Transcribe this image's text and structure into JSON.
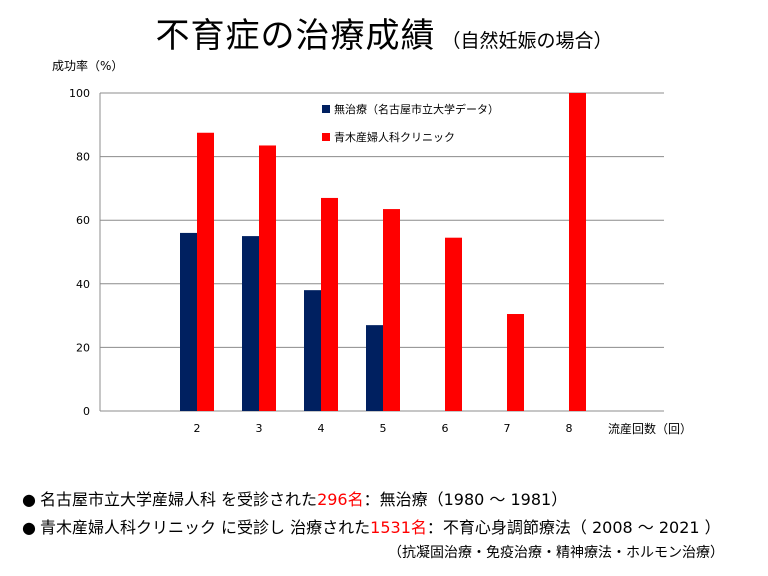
{
  "title": {
    "main": "不育症の治療成績",
    "sub": "（自然妊娠の場合）"
  },
  "chart_data": {
    "type": "bar",
    "ylabel": "成功率（%）",
    "xlabel": "流産回数（回）",
    "categories": [
      "2",
      "3",
      "4",
      "5",
      "6",
      "7",
      "8"
    ],
    "ylim": [
      0,
      100
    ],
    "yticks": [
      0,
      20,
      40,
      60,
      80,
      100
    ],
    "grid": true,
    "legend_position": "top-center",
    "series": [
      {
        "name": "無治療（名古屋市立大学データ）",
        "color": "#002060",
        "values": [
          56,
          55,
          38,
          27,
          null,
          null,
          null
        ]
      },
      {
        "name": "青木産婦人科クリニック",
        "color": "#ff0000",
        "values": [
          87.5,
          83.5,
          67,
          63.5,
          54.5,
          30.5,
          100
        ]
      }
    ]
  },
  "notes": [
    {
      "bullet": "●",
      "pre": "名古屋市立大学産婦人科 を受診された",
      "highlight": "296名",
      "post": "：無治療（1980 ～ 1981）"
    },
    {
      "bullet": "●",
      "pre": "青木産婦人科クリニック に受診し 治療された",
      "highlight": "1531名",
      "post": "：不育心身調節療法（ 2008 ～ 2021 ）"
    }
  ],
  "sub_note": "（抗凝固治療・免疫治療・精神療法・ホルモン治療）"
}
